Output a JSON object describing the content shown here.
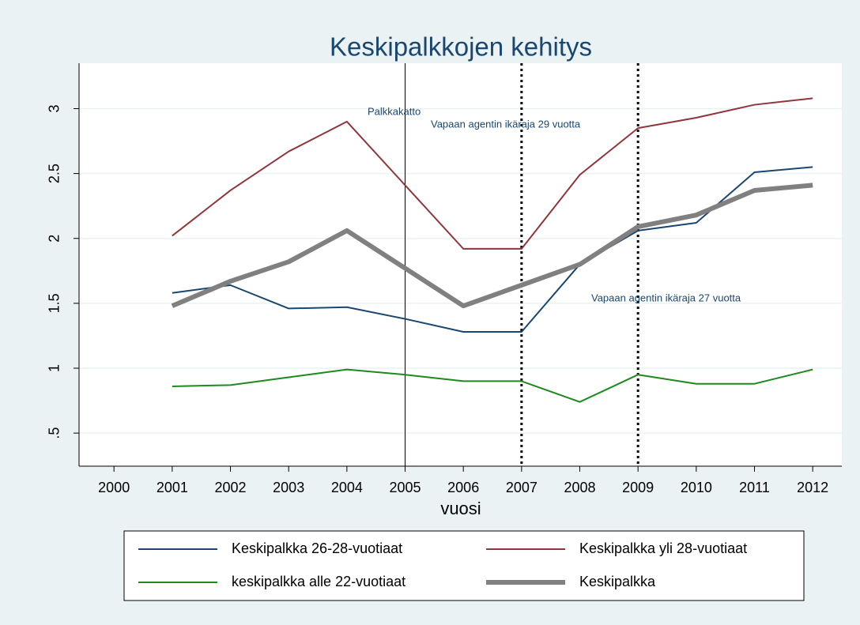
{
  "chart_data": {
    "type": "line",
    "title": "Keskipalkkojen kehitys",
    "xlabel": "vuosi",
    "x": [
      2001,
      2002,
      2003,
      2004,
      2005,
      2006,
      2007,
      2008,
      2009,
      2010,
      2011,
      2012
    ],
    "series": [
      {
        "name": "Keskipalkka 26-28-vuotiaat",
        "color": "#1a476f",
        "width": 2,
        "values": [
          1.58,
          1.64,
          1.46,
          1.47,
          1.38,
          1.28,
          1.28,
          1.8,
          2.06,
          2.12,
          2.51,
          2.55
        ]
      },
      {
        "name": "Keskipalkka yli 28-vuotiaat",
        "color": "#90353b",
        "width": 2,
        "values": [
          2.02,
          2.37,
          2.67,
          2.9,
          2.41,
          1.92,
          1.92,
          2.49,
          2.85,
          2.93,
          3.03,
          3.08
        ]
      },
      {
        "name": "keskipalkka alle 22-vuotiaat",
        "color": "#1e8a1e",
        "width": 2,
        "values": [
          0.86,
          0.87,
          0.93,
          0.99,
          0.95,
          0.9,
          0.9,
          0.74,
          0.95,
          0.88,
          0.88,
          0.99
        ]
      },
      {
        "name": "Keskipalkka",
        "color": "#808080",
        "width": 6,
        "values": [
          1.48,
          1.67,
          1.82,
          2.06,
          1.77,
          1.48,
          1.64,
          1.8,
          2.09,
          2.18,
          2.37,
          2.41
        ]
      }
    ],
    "vlines": [
      {
        "x": 2005,
        "style": "solid"
      },
      {
        "x": 2007,
        "style": "dotted"
      },
      {
        "x": 2009,
        "style": "dotted"
      }
    ],
    "annotations": [
      "Palkkakatto",
      "Vapaan agentin ikäraja 29 vuotta",
      "Vapaan agentin ikäraja 27 vuotta"
    ],
    "xlim": [
      1999.4,
      2012.5
    ],
    "xticks": [
      2000,
      2001,
      2002,
      2003,
      2004,
      2005,
      2006,
      2007,
      2008,
      2009,
      2010,
      2011,
      2012
    ],
    "ylim": [
      0.245,
      3.35
    ],
    "yticks": [
      {
        "value": 0.5,
        "label": ".5"
      },
      1,
      1.5,
      2,
      2.5,
      3
    ],
    "grid": true,
    "legend": "bottom"
  }
}
